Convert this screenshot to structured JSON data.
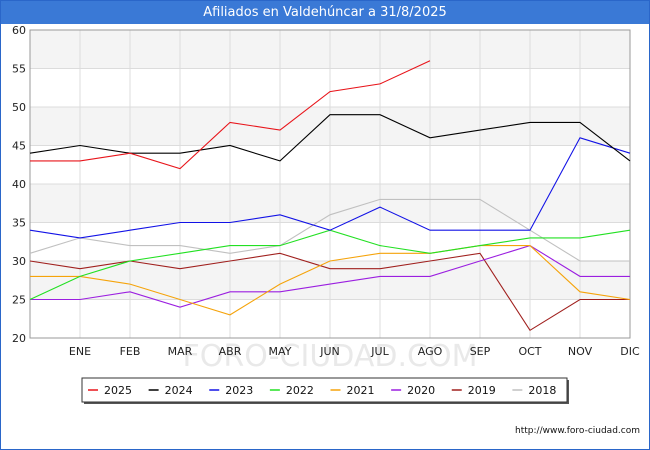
{
  "title": "Afiliados en Valdehúncar a 31/8/2025",
  "source": "http://www.foro-ciudad.com",
  "watermark": "FORO-CIUDAD.COM",
  "chart_data": {
    "type": "line",
    "title": "Afiliados en Valdehúncar a 31/8/2025",
    "xlabel": "",
    "ylabel": "",
    "categories": [
      "",
      "ENE",
      "FEB",
      "MAR",
      "ABR",
      "MAY",
      "JUN",
      "JUL",
      "AGO",
      "SEP",
      "OCT",
      "NOV",
      "DIC"
    ],
    "ylim": [
      20,
      60
    ],
    "yticks": [
      20,
      25,
      30,
      35,
      40,
      45,
      50,
      55,
      60
    ],
    "grid": true,
    "legend_position": "bottom",
    "series": [
      {
        "name": "2025",
        "color": "#e8141a",
        "values": [
          43,
          43,
          44,
          42,
          48,
          47,
          52,
          53,
          56,
          null,
          null,
          null,
          null
        ]
      },
      {
        "name": "2024",
        "color": "#000000",
        "values": [
          44,
          45,
          44,
          44,
          45,
          43,
          49,
          49,
          46,
          47,
          48,
          48,
          43
        ]
      },
      {
        "name": "2023",
        "color": "#1212e6",
        "values": [
          34,
          33,
          34,
          35,
          35,
          36,
          34,
          37,
          34,
          34,
          34,
          46,
          44
        ]
      },
      {
        "name": "2022",
        "color": "#22e022",
        "values": [
          25,
          28,
          30,
          31,
          32,
          32,
          34,
          32,
          31,
          32,
          33,
          33,
          34
        ]
      },
      {
        "name": "2021",
        "color": "#f5a30a",
        "values": [
          28,
          28,
          27,
          25,
          23,
          27,
          30,
          31,
          31,
          32,
          32,
          26,
          25
        ]
      },
      {
        "name": "2020",
        "color": "#9b1fe0",
        "values": [
          25,
          25,
          26,
          24,
          26,
          26,
          27,
          28,
          28,
          30,
          32,
          28,
          28
        ]
      },
      {
        "name": "2019",
        "color": "#a0201e",
        "values": [
          30,
          29,
          30,
          29,
          30,
          31,
          29,
          29,
          30,
          31,
          21,
          25,
          25
        ]
      },
      {
        "name": "2018",
        "color": "#c0c0c0",
        "values": [
          31,
          33,
          32,
          32,
          31,
          32,
          36,
          38,
          38,
          38,
          34,
          30,
          30
        ]
      }
    ]
  }
}
